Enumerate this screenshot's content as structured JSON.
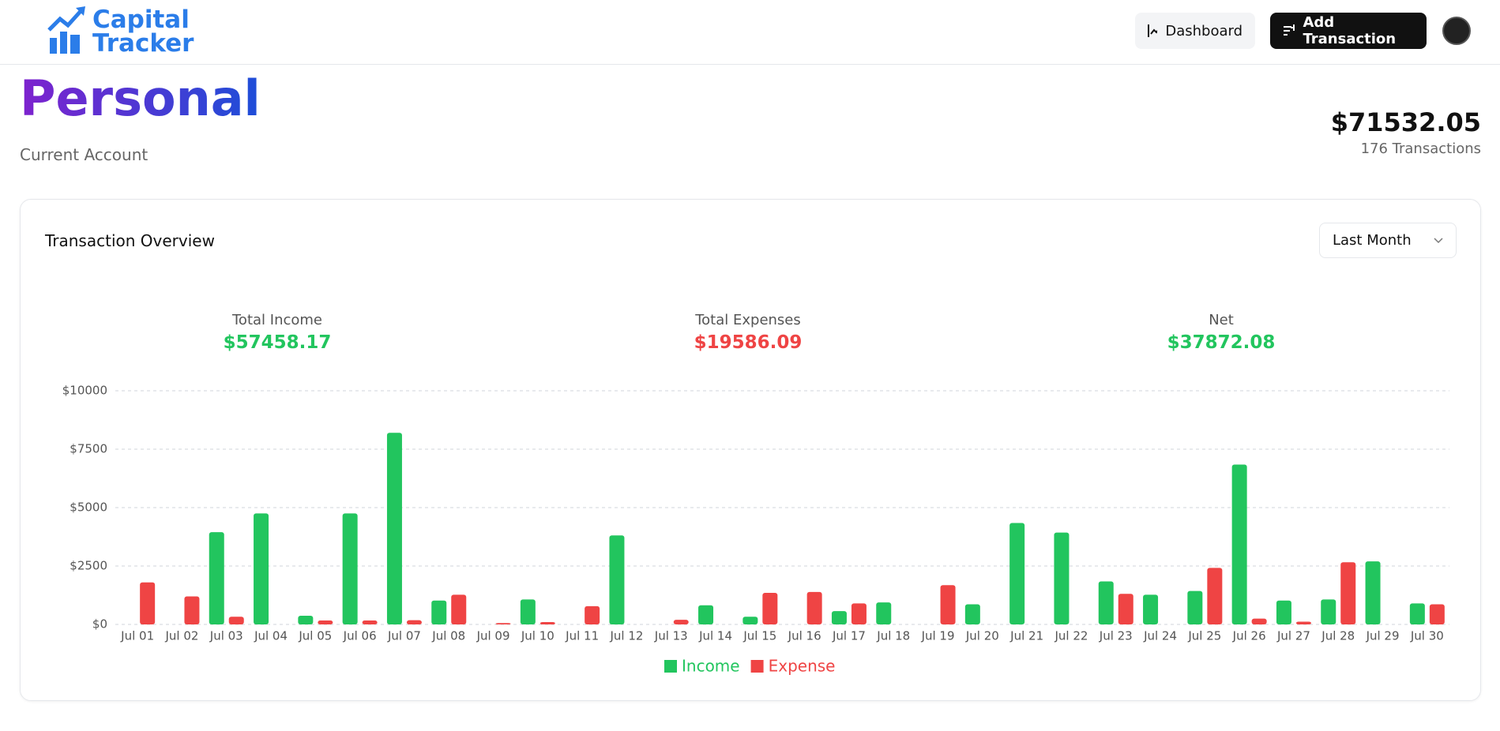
{
  "header": {
    "logo_line1": "Capital",
    "logo_line2": "Tracker",
    "nav": [
      "Dashboard",
      "Add Transaction"
    ]
  },
  "account": {
    "name": "Personal",
    "type": "Current Account",
    "balance": "$71532.05",
    "transactions": "176 Transactions"
  },
  "card": {
    "title": "Transaction Overview",
    "period": "Last Month",
    "stats": [
      {
        "label": "Total Income",
        "value": "$57458.17"
      },
      {
        "label": "Total Expenses",
        "value": "$19586.09"
      },
      {
        "label": "Net",
        "value": "$37872.08"
      }
    ]
  },
  "chart_data": {
    "type": "bar",
    "categories": [
      "Jul 01",
      "Jul 02",
      "Jul 03",
      "Jul 04",
      "Jul 05",
      "Jul 06",
      "Jul 07",
      "Jul 08",
      "Jul 09",
      "Jul 10",
      "Jul 11",
      "Jul 12",
      "Jul 13",
      "Jul 14",
      "Jul 15",
      "Jul 16",
      "Jul 17",
      "Jul 18",
      "Jul 19",
      "Jul 20",
      "Jul 21",
      "Jul 22",
      "Jul 23",
      "Jul 24",
      "Jul 25",
      "Jul 26",
      "Jul 27",
      "Jul 28",
      "Jul 29",
      "Jul 30"
    ],
    "series": [
      {
        "name": "Income",
        "color": "#22c55e",
        "values": [
          0,
          0,
          3950,
          4750,
          370,
          4750,
          8200,
          1020,
          0,
          1070,
          0,
          3810,
          0,
          820,
          330,
          0,
          570,
          940,
          0,
          860,
          4340,
          3930,
          1840,
          1270,
          1430,
          6840,
          1020,
          1070,
          2700,
          900
        ]
      },
      {
        "name": "Expense",
        "color": "#ef4444",
        "values": [
          1800,
          1200,
          330,
          0,
          170,
          170,
          180,
          1270,
          60,
          100,
          780,
          0,
          200,
          0,
          1350,
          1390,
          900,
          0,
          1680,
          0,
          0,
          0,
          1310,
          0,
          2420,
          250,
          120,
          2660,
          0,
          860
        ]
      }
    ],
    "ylim": [
      0,
      10000
    ],
    "yticks": [
      {
        "value": 0,
        "label": "$0"
      },
      {
        "value": 2500,
        "label": "$2500"
      },
      {
        "value": 5000,
        "label": "$5000"
      },
      {
        "value": 7500,
        "label": "$7500"
      },
      {
        "value": 10000,
        "label": "$10000"
      }
    ],
    "grid": true
  }
}
